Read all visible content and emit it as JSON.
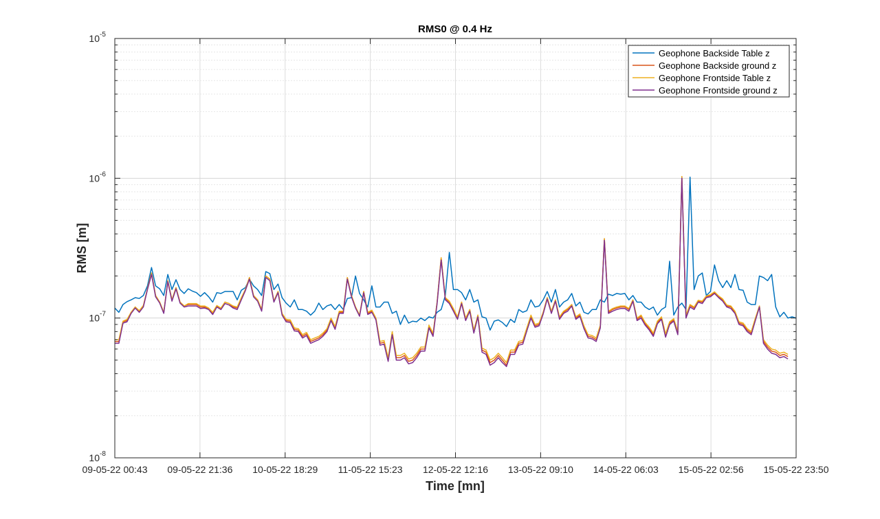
{
  "chart_data": {
    "type": "line",
    "title": "RMS0 @ 0.4 Hz",
    "xlabel": "Time [mn]",
    "ylabel": "RMS [m]",
    "yscale": "log",
    "ylim": [
      1e-08,
      1e-05
    ],
    "grid": true,
    "legend_position": "top-right",
    "x_tick_labels": [
      "09-05-22 00:43",
      "09-05-22 21:36",
      "10-05-22 18:29",
      "11-05-22 15:23",
      "12-05-22 12:16",
      "13-05-22 09:10",
      "14-05-22 06:03",
      "15-05-22 02:56",
      "15-05-22 23:50"
    ],
    "y_ticks": [
      {
        "base": "10",
        "exp": "-8"
      },
      {
        "base": "10",
        "exp": "-7"
      },
      {
        "base": "10",
        "exp": "-6"
      },
      {
        "base": "10",
        "exp": "-5"
      }
    ],
    "x_range": [
      "09-05-22 00:43",
      "15-05-22 23:50"
    ],
    "x_step_minutes": 48,
    "series": [
      {
        "name": "Geophone Backside Table z",
        "color": "#0072BD",
        "values": [
          1.18e-07,
          1.1e-07,
          1.25e-07,
          1.31e-07,
          1.35e-07,
          1.4e-07,
          1.38e-07,
          1.45e-07,
          1.7e-07,
          2.3e-07,
          1.7e-07,
          1.62e-07,
          1.45e-07,
          2.05e-07,
          1.6e-07,
          1.88e-07,
          1.6e-07,
          1.5e-07,
          1.62e-07,
          1.56e-07,
          1.52e-07,
          1.43e-07,
          1.52e-07,
          1.42e-07,
          1.3e-07,
          1.52e-07,
          1.5e-07,
          1.55e-07,
          1.55e-07,
          1.55e-07,
          1.35e-07,
          1.58e-07,
          1.65e-07,
          1.9e-07,
          1.7e-07,
          1.6e-07,
          1.45e-07,
          2.15e-07,
          2.08e-07,
          1.6e-07,
          1.75e-07,
          1.4e-07,
          1.28e-07,
          1.2e-07,
          1.35e-07,
          1.15e-07,
          1.15e-07,
          1.12e-07,
          1.05e-07,
          1.12e-07,
          1.28e-07,
          1.15e-07,
          1.22e-07,
          1.25e-07,
          1.15e-07,
          1.25e-07,
          1.15e-07,
          1.38e-07,
          1.4e-07,
          2e-07,
          1.5e-07,
          1.35e-07,
          1.2e-07,
          1.7e-07,
          1.2e-07,
          1.2e-07,
          1.3e-07,
          1.3e-07,
          1.08e-07,
          1.12e-07,
          9e-08,
          1.05e-07,
          9.2e-08,
          9.5e-08,
          9.4e-08,
          1e-07,
          9.6e-08,
          1.02e-07,
          1e-07,
          1.1e-07,
          1.15e-07,
          1.45e-07,
          2.95e-07,
          1.6e-07,
          1.6e-07,
          1.52e-07,
          1.35e-07,
          1.6e-07,
          1.3e-07,
          1.35e-07,
          1.02e-07,
          1e-07,
          8.2e-08,
          9.5e-08,
          9.7e-08,
          9.3e-08,
          8.7e-08,
          9.8e-08,
          9.3e-08,
          1.15e-07,
          1.1e-07,
          1.13e-07,
          1.35e-07,
          1.2e-07,
          1.22e-07,
          1.35e-07,
          1.55e-07,
          1.3e-07,
          1.6e-07,
          1.2e-07,
          1.3e-07,
          1.35e-07,
          1.5e-07,
          1.22e-07,
          1.3e-07,
          1.1e-07,
          1.07e-07,
          1.15e-07,
          1.15e-07,
          1.35e-07,
          1.3e-07,
          1.48e-07,
          1.45e-07,
          1.5e-07,
          1.48e-07,
          1.5e-07,
          1.35e-07,
          1.45e-07,
          1.3e-07,
          1.3e-07,
          1.2e-07,
          1.15e-07,
          1.2e-07,
          1.05e-07,
          1.15e-07,
          1.2e-07,
          2.55e-07,
          1.05e-07,
          1.2e-07,
          1.28e-07,
          1.15e-07,
          1.02e-06,
          1.6e-07,
          2e-07,
          2.1e-07,
          1.45e-07,
          1.55e-07,
          2.4e-07,
          1.85e-07,
          1.65e-07,
          1.85e-07,
          1.65e-07,
          2.05e-07,
          1.6e-07,
          1.58e-07,
          1.3e-07,
          1.25e-07,
          1.25e-07,
          2e-07,
          1.95e-07,
          1.85e-07,
          2.05e-07,
          1.2e-07,
          1.02e-07,
          1.1e-07,
          1e-07,
          1.02e-07,
          1e-07
        ]
      },
      {
        "name": "Geophone Backside ground z",
        "color": "#D95319",
        "values": [
          6.8e-08,
          6.8e-08,
          9.4e-08,
          9.6e-08,
          1.1e-07,
          1.2e-07,
          1.12e-07,
          1.22e-07,
          1.62e-07,
          2.1e-07,
          1.45e-07,
          1.3e-07,
          1.1e-07,
          1.85e-07,
          1.35e-07,
          1.65e-07,
          1.3e-07,
          1.22e-07,
          1.25e-07,
          1.25e-07,
          1.25e-07,
          1.2e-07,
          1.2e-07,
          1.17e-07,
          1.08e-07,
          1.22e-07,
          1.17e-07,
          1.3e-07,
          1.27e-07,
          1.2e-07,
          1.18e-07,
          1.38e-07,
          1.6e-07,
          1.95e-07,
          1.45e-07,
          1.35e-07,
          1.15e-07,
          2e-07,
          1.9e-07,
          1.32e-07,
          1.55e-07,
          1.07e-07,
          9.6e-08,
          9.5e-08,
          8.3e-08,
          8.2e-08,
          7.4e-08,
          7.7e-08,
          6.8e-08,
          7e-08,
          7.2e-08,
          7.6e-08,
          8.2e-08,
          9.8e-08,
          8.5e-08,
          1.1e-07,
          1.1e-07,
          1.95e-07,
          1.45e-07,
          1.2e-07,
          1.05e-07,
          1.55e-07,
          1.08e-07,
          1.12e-07,
          9.9e-08,
          6.6e-08,
          6.7e-08,
          5e-08,
          7.8e-08,
          5.2e-08,
          5.2e-08,
          5.4e-08,
          4.9e-08,
          5e-08,
          5.4e-08,
          6e-08,
          6e-08,
          8.7e-08,
          7.6e-08,
          1.3e-07,
          2.7e-07,
          1.38e-07,
          1.3e-07,
          1.15e-07,
          1e-07,
          1.3e-07,
          9.8e-08,
          1.15e-07,
          8e-08,
          1.05e-07,
          5.9e-08,
          5.7e-08,
          4.8e-08,
          5e-08,
          5.4e-08,
          5e-08,
          4.6e-08,
          5.7e-08,
          5.7e-08,
          6.6e-08,
          6.7e-08,
          8.3e-08,
          1.03e-07,
          8.8e-08,
          9e-08,
          1.1e-07,
          1.4e-07,
          1.1e-07,
          1.35e-07,
          1e-07,
          1.1e-07,
          1.15e-07,
          1.25e-07,
          1e-07,
          1.05e-07,
          8.6e-08,
          7.4e-08,
          7.3e-08,
          7e-08,
          8.7e-08,
          3.7e-07,
          1.1e-07,
          1.15e-07,
          1.18e-07,
          1.2e-07,
          1.2e-07,
          1.15e-07,
          1.35e-07,
          9.8e-08,
          1.03e-07,
          9.1e-08,
          8.4e-08,
          7.6e-08,
          9.3e-08,
          1e-07,
          7.5e-08,
          9.2e-08,
          9.7e-08,
          7.8e-08,
          1.03e-06,
          1.03e-07,
          1.23e-07,
          1.18e-07,
          1.32e-07,
          1.3e-07,
          1.42e-07,
          1.45e-07,
          1.52e-07,
          1.42e-07,
          1.35e-07,
          1.22e-07,
          1.2e-07,
          1.1e-07,
          9.2e-08,
          9e-08,
          8.2e-08,
          7.8e-08,
          9.8e-08,
          1.22e-07,
          6.8e-08,
          6.2e-08,
          5.8e-08,
          5.7e-08,
          5.4e-08,
          5.5e-08,
          5.3e-08
        ]
      },
      {
        "name": "Geophone Frontside Table z",
        "color": "#EDB120",
        "values": [
          7e-08,
          7e-08,
          9.5e-08,
          9.8e-08,
          1.1e-07,
          1.2e-07,
          1.13e-07,
          1.23e-07,
          1.62e-07,
          2.1e-07,
          1.45e-07,
          1.3e-07,
          1.1e-07,
          1.85e-07,
          1.35e-07,
          1.65e-07,
          1.3e-07,
          1.22e-07,
          1.27e-07,
          1.27e-07,
          1.27e-07,
          1.22e-07,
          1.22e-07,
          1.18e-07,
          1.1e-07,
          1.23e-07,
          1.18e-07,
          1.3e-07,
          1.27e-07,
          1.22e-07,
          1.2e-07,
          1.4e-07,
          1.6e-07,
          1.95e-07,
          1.45e-07,
          1.35e-07,
          1.15e-07,
          2e-07,
          1.9e-07,
          1.32e-07,
          1.55e-07,
          1.08e-07,
          9.8e-08,
          9.7e-08,
          8.5e-08,
          8.4e-08,
          7.6e-08,
          7.9e-08,
          7e-08,
          7.2e-08,
          7.4e-08,
          7.8e-08,
          8.4e-08,
          1e-07,
          8.7e-08,
          1.12e-07,
          1.12e-07,
          1.95e-07,
          1.45e-07,
          1.2e-07,
          1.05e-07,
          1.55e-07,
          1.1e-07,
          1.14e-07,
          1e-07,
          6.8e-08,
          6.9e-08,
          5.2e-08,
          8e-08,
          5.4e-08,
          5.4e-08,
          5.6e-08,
          5.1e-08,
          5.2e-08,
          5.6e-08,
          6.2e-08,
          6.2e-08,
          8.9e-08,
          7.8e-08,
          1.3e-07,
          2.7e-07,
          1.4e-07,
          1.32e-07,
          1.17e-07,
          1.02e-07,
          1.3e-07,
          1e-07,
          1.15e-07,
          8.2e-08,
          1.05e-07,
          6.1e-08,
          5.9e-08,
          5e-08,
          5.2e-08,
          5.6e-08,
          5.2e-08,
          4.8e-08,
          5.9e-08,
          5.9e-08,
          6.8e-08,
          6.9e-08,
          8.5e-08,
          1.05e-07,
          9e-08,
          9.2e-08,
          1.1e-07,
          1.4e-07,
          1.12e-07,
          1.35e-07,
          1.02e-07,
          1.12e-07,
          1.17e-07,
          1.25e-07,
          1.02e-07,
          1.07e-07,
          8.8e-08,
          7.6e-08,
          7.5e-08,
          7.2e-08,
          8.9e-08,
          3.7e-07,
          1.12e-07,
          1.17e-07,
          1.2e-07,
          1.22e-07,
          1.22e-07,
          1.17e-07,
          1.35e-07,
          1e-07,
          1.05e-07,
          9.3e-08,
          8.6e-08,
          7.8e-08,
          9.5e-08,
          1.02e-07,
          7.7e-08,
          9.4e-08,
          9.9e-08,
          8e-08,
          1.03e-06,
          1.05e-07,
          1.25e-07,
          1.2e-07,
          1.34e-07,
          1.32e-07,
          1.44e-07,
          1.47e-07,
          1.54e-07,
          1.44e-07,
          1.37e-07,
          1.24e-07,
          1.22e-07,
          1.12e-07,
          9.4e-08,
          9.2e-08,
          8.4e-08,
          8e-08,
          1e-07,
          1.22e-07,
          7e-08,
          6.4e-08,
          6e-08,
          5.9e-08,
          5.6e-08,
          5.7e-08,
          5.5e-08
        ]
      },
      {
        "name": "Geophone Frontside ground z",
        "color": "#7E2F8E",
        "values": [
          6.6e-08,
          6.6e-08,
          9.2e-08,
          9.4e-08,
          1.08e-07,
          1.18e-07,
          1.1e-07,
          1.2e-07,
          1.6e-07,
          2.05e-07,
          1.42e-07,
          1.28e-07,
          1.08e-07,
          1.82e-07,
          1.32e-07,
          1.62e-07,
          1.28e-07,
          1.2e-07,
          1.22e-07,
          1.22e-07,
          1.22e-07,
          1.17e-07,
          1.18e-07,
          1.15e-07,
          1.06e-07,
          1.2e-07,
          1.15e-07,
          1.27e-07,
          1.24e-07,
          1.18e-07,
          1.15e-07,
          1.35e-07,
          1.57e-07,
          1.9e-07,
          1.42e-07,
          1.32e-07,
          1.12e-07,
          1.95e-07,
          1.85e-07,
          1.3e-07,
          1.52e-07,
          1.05e-07,
          9.4e-08,
          9.3e-08,
          8.1e-08,
          8e-08,
          7.2e-08,
          7.5e-08,
          6.6e-08,
          6.8e-08,
          7e-08,
          7.4e-08,
          8e-08,
          9.6e-08,
          8.3e-08,
          1.08e-07,
          1.08e-07,
          1.9e-07,
          1.42e-07,
          1.18e-07,
          1.03e-07,
          1.52e-07,
          1.06e-07,
          1.1e-07,
          9.7e-08,
          6.4e-08,
          6.5e-08,
          4.9e-08,
          7.6e-08,
          5e-08,
          5e-08,
          5.2e-08,
          4.7e-08,
          4.8e-08,
          5.2e-08,
          5.8e-08,
          5.8e-08,
          8.5e-08,
          7.4e-08,
          1.27e-07,
          2.6e-07,
          1.35e-07,
          1.27e-07,
          1.12e-07,
          9.8e-08,
          1.27e-07,
          9.6e-08,
          1.12e-07,
          7.8e-08,
          1.02e-07,
          5.7e-08,
          5.5e-08,
          4.6e-08,
          4.8e-08,
          5.2e-08,
          4.8e-08,
          4.5e-08,
          5.5e-08,
          5.5e-08,
          6.4e-08,
          6.5e-08,
          8.1e-08,
          1e-07,
          8.6e-08,
          8.8e-08,
          1.07e-07,
          1.37e-07,
          1.08e-07,
          1.32e-07,
          9.8e-08,
          1.08e-07,
          1.12e-07,
          1.22e-07,
          9.8e-08,
          1.03e-07,
          8.4e-08,
          7.2e-08,
          7.1e-08,
          6.8e-08,
          8.5e-08,
          3.6e-07,
          1.08e-07,
          1.12e-07,
          1.15e-07,
          1.17e-07,
          1.17e-07,
          1.12e-07,
          1.32e-07,
          9.6e-08,
          1e-07,
          8.9e-08,
          8.2e-08,
          7.4e-08,
          9.1e-08,
          9.8e-08,
          7.3e-08,
          9e-08,
          9.5e-08,
          7.6e-08,
          1e-06,
          1e-07,
          1.2e-07,
          1.15e-07,
          1.3e-07,
          1.27e-07,
          1.4e-07,
          1.42e-07,
          1.5e-07,
          1.4e-07,
          1.32e-07,
          1.2e-07,
          1.17e-07,
          1.08e-07,
          9e-08,
          8.8e-08,
          8e-08,
          7.6e-08,
          9.6e-08,
          1.2e-07,
          6.6e-08,
          6e-08,
          5.6e-08,
          5.5e-08,
          5.2e-08,
          5.3e-08,
          5.1e-08
        ]
      }
    ]
  }
}
